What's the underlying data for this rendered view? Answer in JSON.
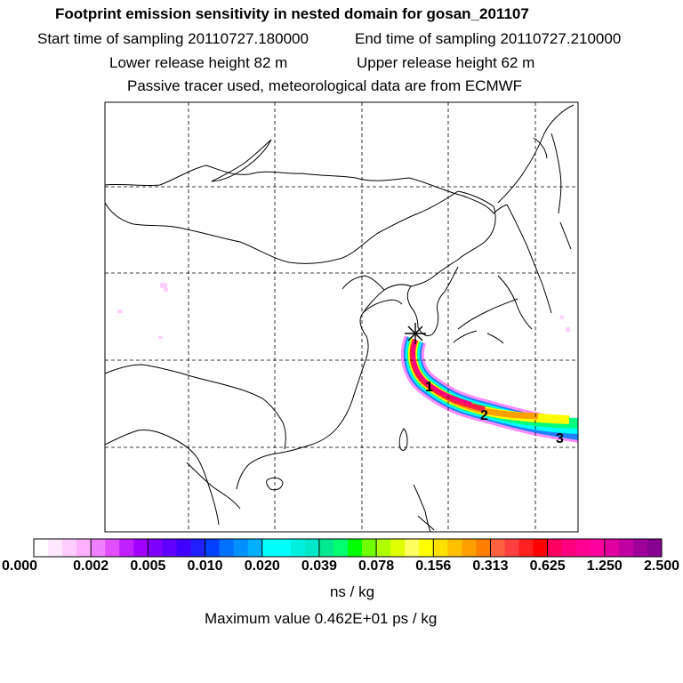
{
  "header": {
    "title": "Footprint emission sensitivity in nested domain for gosan_201107",
    "start_time": "Start time of sampling 20110727.180000",
    "end_time": "End time of sampling 20110727.210000",
    "lower_release": "Lower release height   82 m",
    "upper_release": "Upper release height   62 m",
    "tracer_info": "Passive tracer used, meteorological data are from ECMWF"
  },
  "map": {
    "receptor_marker": "star-icon",
    "trajectory_labels": [
      "1",
      "2",
      "3"
    ],
    "plume_colors": [
      "#ff0080",
      "#ff2020",
      "#ffa000",
      "#ffff00",
      "#00ff80",
      "#00ffff",
      "#0080ff",
      "#4040ff",
      "#a000ff",
      "#ff80ff"
    ]
  },
  "colorbar": {
    "ticks": [
      "0.000",
      "0.002",
      "0.005",
      "0.010",
      "0.020",
      "0.039",
      "0.078",
      "0.156",
      "0.313",
      "0.625",
      "1.250",
      "2.500"
    ],
    "colors": [
      [
        "#ffffff",
        "#ffe8ff",
        "#ffccff",
        "#ffb0ff"
      ],
      [
        "#f080ff",
        "#e050ff",
        "#c020ff",
        "#a000ff"
      ],
      [
        "#8000ff",
        "#6000ff",
        "#4000ff",
        "#2020ff"
      ],
      [
        "#0040ff",
        "#0070ff",
        "#0090ff",
        "#00b0ff"
      ],
      [
        "#00ffff",
        "#00ffff",
        "#00f0e0",
        "#00e8c8"
      ],
      [
        "#00e890",
        "#00ff70",
        "#00ff00",
        "#70ff00"
      ],
      [
        "#b0ff00",
        "#e0ff00",
        "#ffff60",
        "#ffff00"
      ],
      [
        "#ffe000",
        "#ffc000",
        "#ffa000",
        "#ff8000"
      ],
      [
        "#ff6040",
        "#ff4040",
        "#ff2020",
        "#ff0000"
      ],
      [
        "#ff0060",
        "#ff0080",
        "#ff0090",
        "#ff00a0"
      ],
      [
        "#e000a0",
        "#c000a0",
        "#a0009a",
        "#880090"
      ]
    ],
    "unit": "ns / kg"
  },
  "max_value": "Maximum value  0.462E+01 ps / kg"
}
